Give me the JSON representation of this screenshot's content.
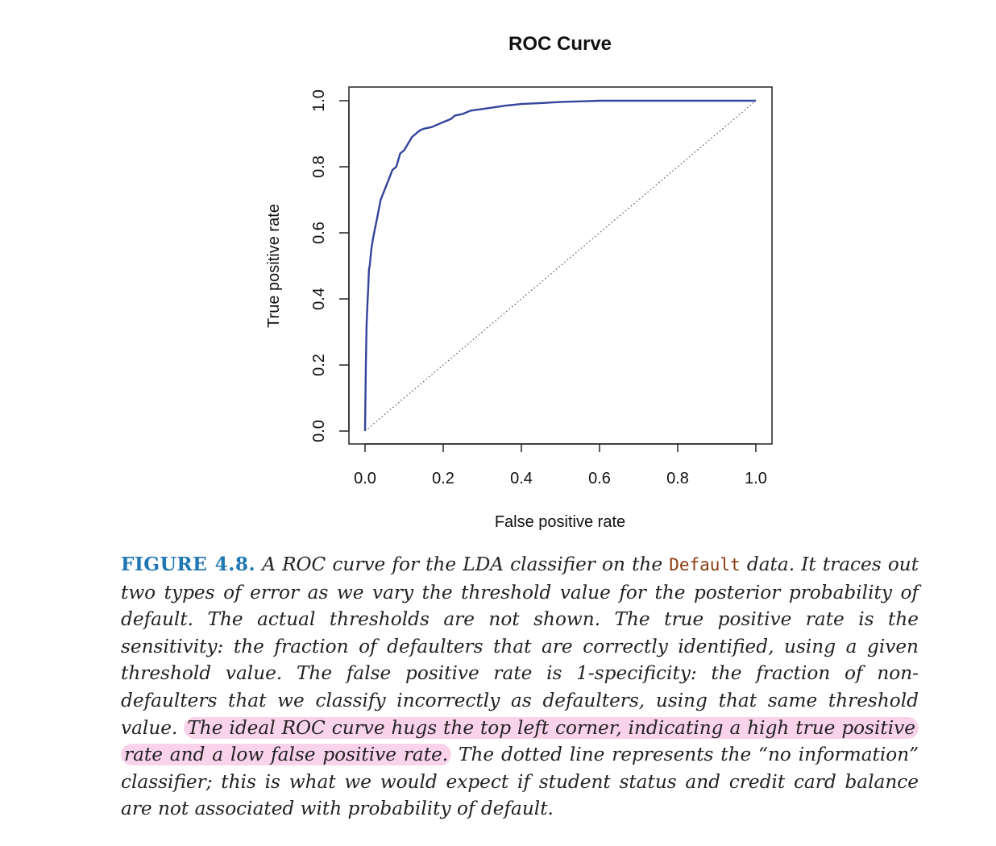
{
  "chart_data": {
    "type": "line",
    "title": "ROC Curve",
    "xlabel": "False positive rate",
    "ylabel": "True positive rate",
    "xlim": [
      0.0,
      1.0
    ],
    "ylim": [
      0.0,
      1.0
    ],
    "xticks": [
      "0.0",
      "0.2",
      "0.4",
      "0.6",
      "0.8",
      "1.0"
    ],
    "yticks": [
      "0.0",
      "0.2",
      "0.4",
      "0.6",
      "0.8",
      "1.0"
    ],
    "grid": false,
    "legend": "none",
    "series": [
      {
        "color": "#33449c",
        "style": "solid",
        "x": [
          0.0,
          0.002,
          0.004,
          0.006,
          0.008,
          0.01,
          0.012,
          0.016,
          0.02,
          0.025,
          0.03,
          0.04,
          0.05,
          0.06,
          0.07,
          0.08,
          0.09,
          0.1,
          0.11,
          0.12,
          0.13,
          0.14,
          0.15,
          0.17,
          0.19,
          0.2,
          0.22,
          0.23,
          0.25,
          0.27,
          0.3,
          0.33,
          0.36,
          0.4,
          0.45,
          0.5,
          0.55,
          0.6,
          0.7,
          0.8,
          0.9,
          1.0
        ],
        "y": [
          0.0,
          0.2,
          0.32,
          0.38,
          0.43,
          0.49,
          0.5,
          0.55,
          0.58,
          0.61,
          0.64,
          0.7,
          0.73,
          0.76,
          0.79,
          0.8,
          0.84,
          0.85,
          0.87,
          0.89,
          0.9,
          0.91,
          0.915,
          0.92,
          0.93,
          0.935,
          0.945,
          0.955,
          0.96,
          0.97,
          0.975,
          0.98,
          0.985,
          0.99,
          0.993,
          0.996,
          0.998,
          1.0,
          1.0,
          1.0,
          1.0,
          1.0
        ]
      },
      {
        "color": "#555555",
        "style": "dotted",
        "x": [
          0.0,
          1.0
        ],
        "y": [
          0.0,
          1.0
        ]
      }
    ]
  },
  "caption": {
    "label": "FIGURE 4.8.",
    "text_1": "A ROC curve for the LDA classifier on the",
    "code": "Default",
    "text_2": "data. It traces out two types of error as we vary the threshold value for the posterior probability of default. The actual thresholds are not shown. The true positive rate is the sensitivity: the fraction of defaulters that are correctly identified, using a given threshold value. The false positive rate is 1-specificity: the fraction of non-defaulters that we classify incorrectly as defaulters, using that same threshold value.",
    "highlight": "The ideal ROC curve hugs the top left corner, indicating a high true positive rate and a low false positive rate.",
    "text_3": "The dotted line represents the “no information” classifier; this is what we would expect if student status and credit card balance are not associated with probability of default.",
    "highlight_color": "#f9d3ea",
    "label_color": "#1f77b4"
  }
}
